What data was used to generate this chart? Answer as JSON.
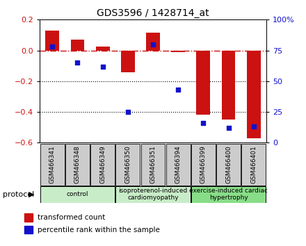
{
  "title": "GDS3596 / 1428714_at",
  "categories": [
    "GSM466341",
    "GSM466348",
    "GSM466349",
    "GSM466350",
    "GSM466351",
    "GSM466394",
    "GSM466399",
    "GSM466400",
    "GSM466401"
  ],
  "bar_values": [
    0.13,
    0.07,
    0.025,
    -0.14,
    0.115,
    -0.01,
    -0.42,
    -0.45,
    -0.57
  ],
  "percentile_values": [
    78,
    65,
    62,
    25,
    80,
    43,
    16,
    12,
    13
  ],
  "ylim_left": [
    -0.6,
    0.2
  ],
  "ylim_right": [
    0,
    100
  ],
  "bar_color": "#cc1111",
  "dot_color": "#1111cc",
  "hline_color": "#cc1111",
  "gridline_color": "black",
  "yticks_left": [
    -0.6,
    -0.4,
    -0.2,
    0.0,
    0.2
  ],
  "yticks_right": [
    0,
    25,
    50,
    75,
    100
  ],
  "group_labels": [
    "control",
    "isoproterenol-induced\ncardiomyopathy",
    "exercise-induced cardiac\nhypertrophy"
  ],
  "group_ranges": [
    [
      0,
      3
    ],
    [
      3,
      6
    ],
    [
      6,
      9
    ]
  ],
  "group_colors_light": [
    "#c8ecc8",
    "#c8ecc8",
    "#88dd88"
  ],
  "protocol_label": "protocol",
  "legend_items": [
    "transformed count",
    "percentile rank within the sample"
  ],
  "legend_colors": [
    "#cc1111",
    "#1111cc"
  ],
  "bg_color": "#ffffff",
  "bar_width": 0.55,
  "sample_box_color": "#cccccc",
  "right_tick_labels": [
    "0",
    "25",
    "50",
    "75",
    "100%"
  ]
}
